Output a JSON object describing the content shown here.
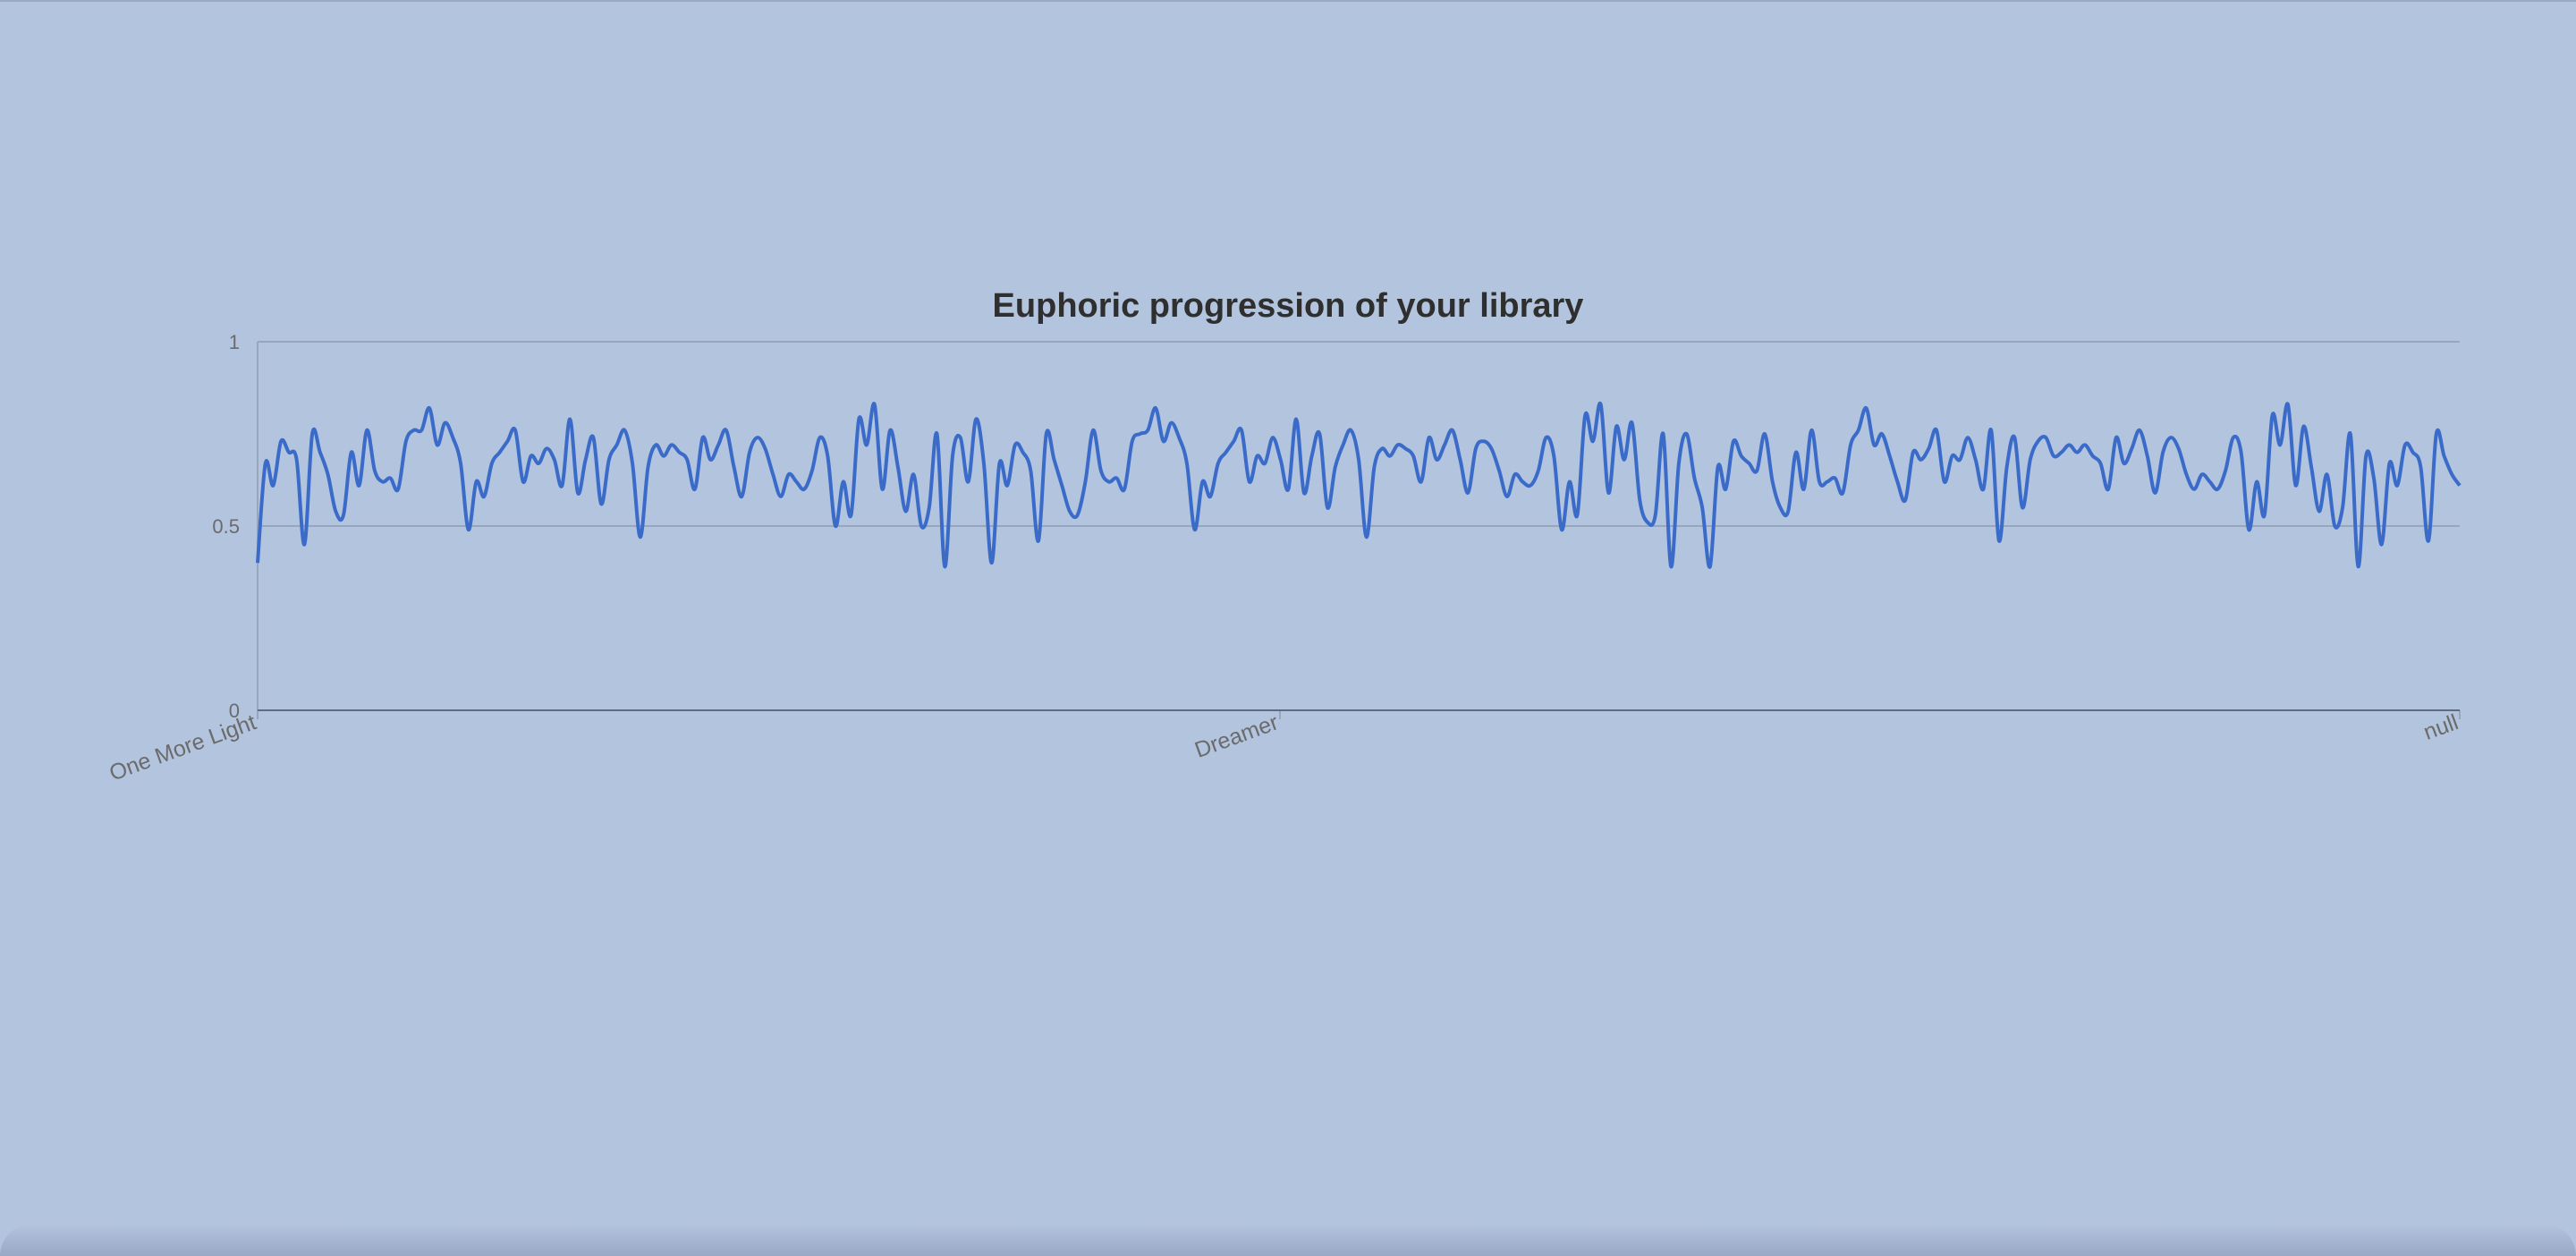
{
  "chart_data": {
    "type": "line",
    "title": "Euphoric progression of your library",
    "xlabel": "",
    "ylabel": "",
    "ylim": [
      0,
      1
    ],
    "yticks": [
      "0",
      "0.5",
      "1"
    ],
    "x_tick_labels": [
      "One More Light",
      "Dreamer",
      "null"
    ],
    "grid": true,
    "series": [
      {
        "color": "#3b6bc9",
        "values": [
          0.4,
          0.67,
          0.61,
          0.73,
          0.7,
          0.68,
          0.45,
          0.75,
          0.7,
          0.64,
          0.54,
          0.53,
          0.7,
          0.61,
          0.76,
          0.65,
          0.62,
          0.63,
          0.6,
          0.73,
          0.76,
          0.76,
          0.82,
          0.72,
          0.78,
          0.74,
          0.67,
          0.49,
          0.62,
          0.58,
          0.67,
          0.7,
          0.73,
          0.76,
          0.62,
          0.69,
          0.67,
          0.71,
          0.68,
          0.61,
          0.79,
          0.59,
          0.68,
          0.74,
          0.56,
          0.68,
          0.72,
          0.76,
          0.67,
          0.47,
          0.66,
          0.72,
          0.69,
          0.72,
          0.7,
          0.68,
          0.6,
          0.74,
          0.68,
          0.72,
          0.76,
          0.66,
          0.58,
          0.7,
          0.74,
          0.71,
          0.64,
          0.58,
          0.64,
          0.62,
          0.6,
          0.65,
          0.74,
          0.69,
          0.5,
          0.62,
          0.53,
          0.79,
          0.72,
          0.83,
          0.6,
          0.76,
          0.66,
          0.54,
          0.64,
          0.5,
          0.55,
          0.75,
          0.39,
          0.69,
          0.74,
          0.62,
          0.79,
          0.67,
          0.4,
          0.67,
          0.61,
          0.72,
          0.7,
          0.65,
          0.46,
          0.75,
          0.68,
          0.61,
          0.54,
          0.53,
          0.62,
          0.76,
          0.65,
          0.62,
          0.63,
          0.6,
          0.73,
          0.75,
          0.76,
          0.82,
          0.73,
          0.78,
          0.74,
          0.67,
          0.49,
          0.62,
          0.58,
          0.67,
          0.7,
          0.73,
          0.76,
          0.62,
          0.69,
          0.67,
          0.74,
          0.68,
          0.6,
          0.79,
          0.59,
          0.69,
          0.75,
          0.55,
          0.66,
          0.72,
          0.76,
          0.68,
          0.47,
          0.66,
          0.71,
          0.69,
          0.72,
          0.71,
          0.69,
          0.62,
          0.74,
          0.68,
          0.72,
          0.76,
          0.68,
          0.59,
          0.71,
          0.73,
          0.71,
          0.65,
          0.58,
          0.64,
          0.62,
          0.61,
          0.65,
          0.74,
          0.69,
          0.49,
          0.62,
          0.53,
          0.8,
          0.73,
          0.83,
          0.59,
          0.77,
          0.68,
          0.78,
          0.57,
          0.51,
          0.53,
          0.75,
          0.39,
          0.67,
          0.75,
          0.63,
          0.55,
          0.39,
          0.66,
          0.6,
          0.73,
          0.69,
          0.67,
          0.65,
          0.75,
          0.62,
          0.55,
          0.54,
          0.7,
          0.6,
          0.76,
          0.62,
          0.62,
          0.63,
          0.59,
          0.72,
          0.76,
          0.82,
          0.72,
          0.75,
          0.69,
          0.62,
          0.57,
          0.7,
          0.68,
          0.71,
          0.76,
          0.62,
          0.69,
          0.68,
          0.74,
          0.68,
          0.6,
          0.76,
          0.46,
          0.66,
          0.74,
          0.55,
          0.68,
          0.73,
          0.74,
          0.69,
          0.7,
          0.72,
          0.7,
          0.72,
          0.69,
          0.67,
          0.6,
          0.74,
          0.67,
          0.71,
          0.76,
          0.69,
          0.59,
          0.7,
          0.74,
          0.71,
          0.64,
          0.6,
          0.64,
          0.62,
          0.6,
          0.65,
          0.74,
          0.7,
          0.49,
          0.62,
          0.53,
          0.8,
          0.72,
          0.83,
          0.61,
          0.77,
          0.66,
          0.54,
          0.64,
          0.5,
          0.55,
          0.75,
          0.39,
          0.69,
          0.63,
          0.45,
          0.67,
          0.61,
          0.72,
          0.7,
          0.66,
          0.46,
          0.75,
          0.69,
          0.64,
          0.61
        ]
      }
    ]
  }
}
